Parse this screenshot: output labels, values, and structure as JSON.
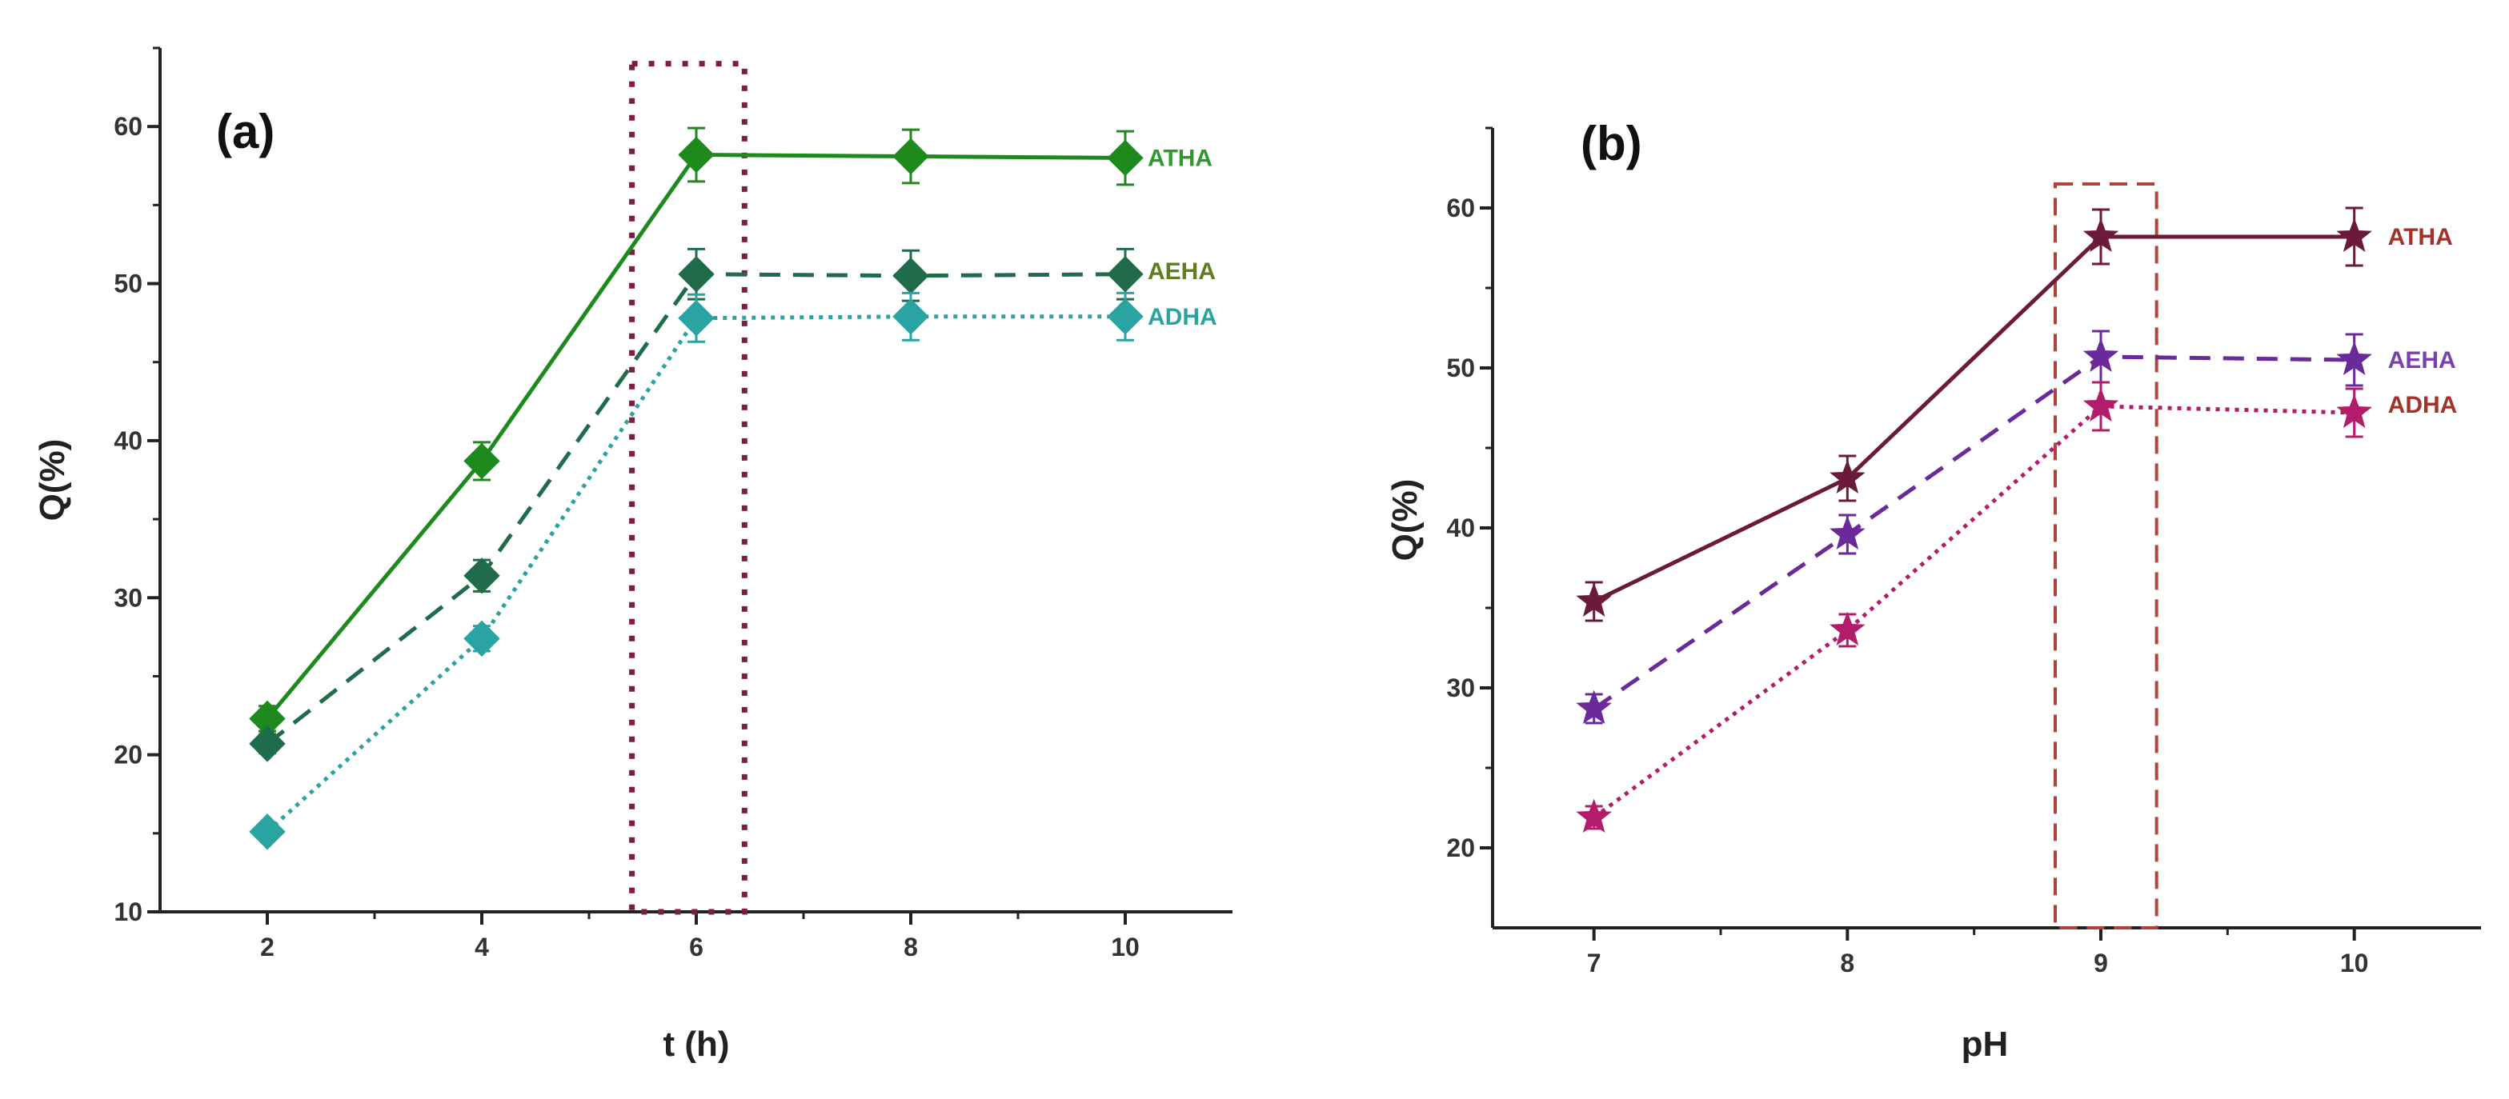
{
  "chart_data": [
    {
      "type": "line",
      "panel_label": "(a)",
      "title": "",
      "xlabel": "t (h)",
      "ylabel": "Q(%)",
      "xlim": [
        1,
        11
      ],
      "ylim": [
        10,
        65
      ],
      "xticks": [
        2,
        4,
        6,
        8,
        10
      ],
      "yticks": [
        10,
        20,
        30,
        40,
        50,
        60
      ],
      "x": [
        2,
        4,
        6,
        8,
        10
      ],
      "marker": "diamond",
      "highlight": {
        "x_range": [
          5.4,
          6.45
        ],
        "y_range": [
          10,
          64
        ],
        "color": "#7a1f3d",
        "style": "dotted"
      },
      "series": [
        {
          "name": "ATHA",
          "values": [
            22.3,
            38.7,
            58.2,
            58.1,
            58.0
          ],
          "errors": [
            0.8,
            1.2,
            1.7,
            1.7,
            1.7
          ],
          "color": "#1e8a1e",
          "label_color": "#2e9a2e",
          "dash": "solid"
        },
        {
          "name": "AEHA",
          "values": [
            20.7,
            31.4,
            50.6,
            50.5,
            50.6
          ],
          "errors": [
            0.6,
            1.0,
            1.6,
            1.6,
            1.6
          ],
          "color": "#1f6b4a",
          "label_color": "#5e7f1c",
          "dash": "dashed"
        },
        {
          "name": "ADHA",
          "values": [
            15.1,
            27.4,
            47.8,
            47.9,
            47.9
          ],
          "errors": [
            0.5,
            0.8,
            1.5,
            1.5,
            1.5
          ],
          "color": "#2aa3a3",
          "label_color": "#2aa3a3",
          "dash": "dotted"
        }
      ]
    },
    {
      "type": "line",
      "panel_label": "(b)",
      "title": "",
      "xlabel": "pH",
      "ylabel": "Q(%)",
      "xlim": [
        6.6,
        10.5
      ],
      "ylim": [
        15,
        65
      ],
      "xticks": [
        7,
        8,
        9,
        10
      ],
      "yticks": [
        20,
        30,
        40,
        50,
        60
      ],
      "x": [
        7,
        8,
        9,
        10
      ],
      "marker": "star",
      "highlight": {
        "x_range": [
          8.82,
          9.22
        ],
        "y_range": [
          15,
          61.5
        ],
        "color": "#b0443c",
        "style": "dashed"
      },
      "series": [
        {
          "name": "ATHA",
          "values": [
            35.4,
            43.1,
            58.2,
            58.2
          ],
          "errors": [
            1.2,
            1.4,
            1.7,
            1.8
          ],
          "color": "#6b1a3a",
          "label_color": "#a33328",
          "dash": "solid"
        },
        {
          "name": "AEHA",
          "values": [
            28.7,
            39.6,
            50.7,
            50.5
          ],
          "errors": [
            0.9,
            1.2,
            1.6,
            1.6
          ],
          "color": "#6a2a9a",
          "label_color": "#7a40b0",
          "dash": "dashed"
        },
        {
          "name": "ADHA",
          "values": [
            21.9,
            33.6,
            47.6,
            47.2
          ],
          "errors": [
            0.7,
            1.0,
            1.5,
            1.5
          ],
          "color": "#b31c6a",
          "label_color": "#a33328",
          "dash": "dotted"
        }
      ]
    }
  ]
}
